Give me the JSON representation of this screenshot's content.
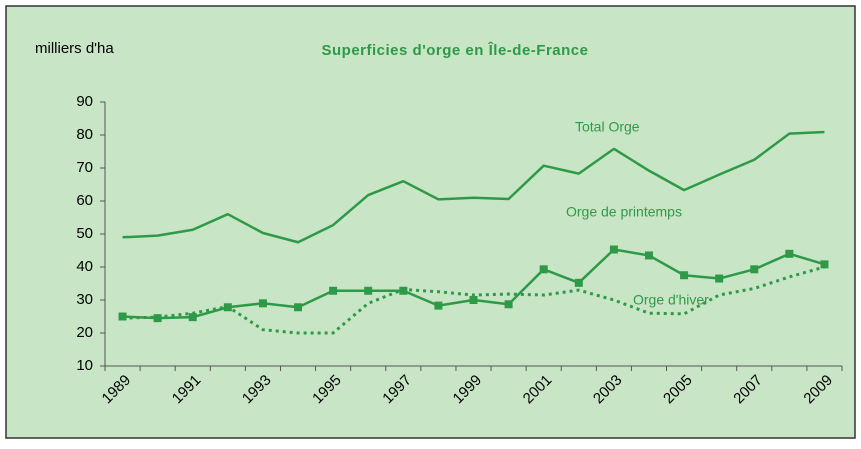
{
  "chart_data": {
    "type": "line",
    "title": "Superficies d'orge en Île-de-France",
    "y_label": "milliers d'ha",
    "title_color": "#2e9a47",
    "background": "#c8e6c6",
    "categories": [
      "1989",
      null,
      "1991",
      null,
      "1993",
      null,
      "1995",
      null,
      "1997",
      null,
      "1999",
      null,
      "2001",
      null,
      "2003",
      null,
      "2005",
      null,
      "2007",
      null,
      "2009"
    ],
    "ylim": [
      10,
      90
    ],
    "yticks": [
      10,
      20,
      30,
      40,
      50,
      60,
      70,
      80,
      90
    ],
    "series": [
      {
        "name": "Total Orge",
        "color": "#2e9a47",
        "style": "solid",
        "marker": "none",
        "values": [
          49,
          49.5,
          51.3,
          56,
          50.3,
          47.5,
          52.7,
          61.8,
          66,
          60.5,
          61,
          60.6,
          70.7,
          68.3,
          75.8,
          69.2,
          63.3,
          68,
          72.5,
          80.4,
          80.9
        ]
      },
      {
        "name": "Orge de printemps",
        "color": "#2e9a47",
        "style": "solid",
        "marker": "square",
        "values": [
          25,
          24.5,
          24.8,
          27.8,
          29,
          27.8,
          32.8,
          32.8,
          32.8,
          28.3,
          30,
          28.7,
          39.3,
          35.2,
          45.3,
          43.5,
          37.5,
          36.5,
          39.3,
          44,
          40.8
        ]
      },
      {
        "name": "Orge d'hiver",
        "color": "#2e9a47",
        "style": "dotted",
        "marker": "none",
        "values": [
          24.5,
          24.8,
          26,
          28,
          21,
          20,
          20,
          29,
          33.2,
          32.5,
          31.5,
          31.8,
          31.5,
          33,
          30,
          26,
          25.8,
          31.5,
          33.5,
          37,
          40
        ]
      }
    ]
  }
}
